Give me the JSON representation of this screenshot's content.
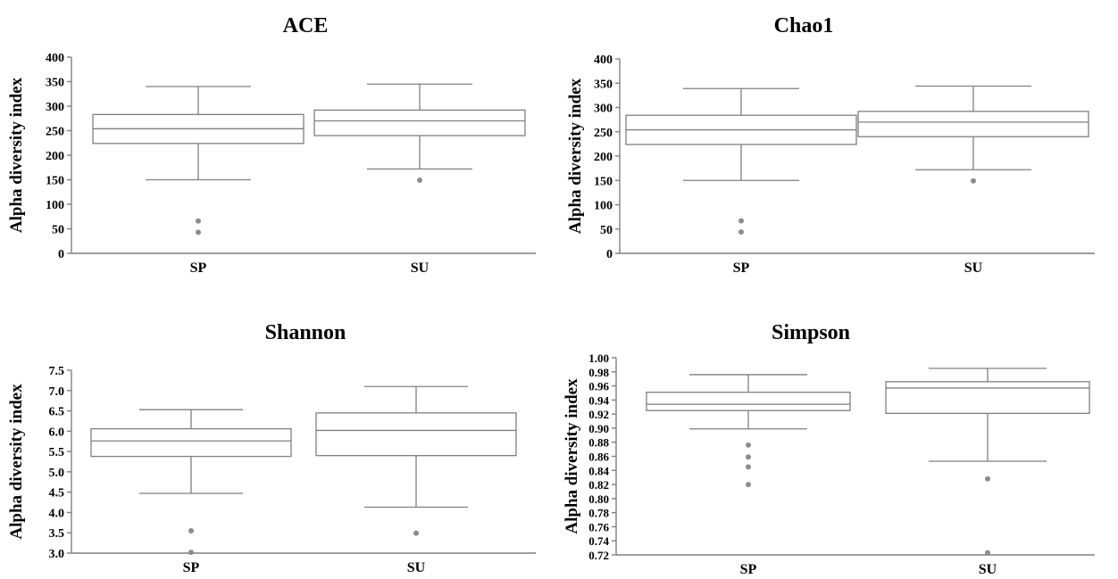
{
  "chart_data": [
    {
      "type": "box",
      "title": "ACE",
      "ylabel": "Alpha diversity index",
      "ylim": [
        0,
        400
      ],
      "yticks": [
        "0",
        "50",
        "100",
        "150",
        "200",
        "250",
        "300",
        "350",
        "400"
      ],
      "categories": [
        "SP",
        "SU"
      ],
      "boxes": [
        {
          "category": "SP",
          "whisker_low": 150,
          "q1": 224,
          "median": 254,
          "q3": 283,
          "whisker_high": 340,
          "outliers": [
            66,
            43
          ]
        },
        {
          "category": "SU",
          "whisker_low": 172,
          "q1": 240,
          "median": 270,
          "q3": 292,
          "whisker_high": 345,
          "outliers": [
            149
          ]
        }
      ]
    },
    {
      "type": "box",
      "title": "Chao1",
      "ylabel": "Alpha diversity index",
      "ylim": [
        0,
        400
      ],
      "yticks": [
        "0",
        "50",
        "100",
        "150",
        "200",
        "250",
        "300",
        "350",
        "400"
      ],
      "categories": [
        "SP",
        "SU"
      ],
      "boxes": [
        {
          "category": "SP",
          "whisker_low": 150,
          "q1": 224,
          "median": 254,
          "q3": 284,
          "whisker_high": 339,
          "outliers": [
            67,
            44
          ]
        },
        {
          "category": "SU",
          "whisker_low": 172,
          "q1": 240,
          "median": 270,
          "q3": 292,
          "whisker_high": 344,
          "outliers": [
            149
          ]
        }
      ]
    },
    {
      "type": "box",
      "title": "Shannon",
      "ylabel": "Alpha diversity index",
      "ylim": [
        3.0,
        7.5
      ],
      "yticks": [
        "3.0",
        "3.5",
        "4.0",
        "4.5",
        "5.0",
        "5.5",
        "6.0",
        "6.5",
        "7.0",
        "7.5"
      ],
      "categories": [
        "SP",
        "SU"
      ],
      "boxes": [
        {
          "category": "SP",
          "whisker_low": 4.47,
          "q1": 5.38,
          "median": 5.76,
          "q3": 6.06,
          "whisker_high": 6.53,
          "outliers": [
            3.55,
            3.02
          ]
        },
        {
          "category": "SU",
          "whisker_low": 4.13,
          "q1": 5.4,
          "median": 6.02,
          "q3": 6.45,
          "whisker_high": 7.1,
          "outliers": [
            3.49
          ]
        }
      ]
    },
    {
      "type": "box",
      "title": "Simpson",
      "ylabel": "Alpha diversity index",
      "ylim": [
        0.72,
        1.0
      ],
      "yticks": [
        "0.72",
        "0.74",
        "0.76",
        "0.78",
        "0.80",
        "0.82",
        "0.84",
        "0.86",
        "0.88",
        "0.90",
        "0.92",
        "0.94",
        "0.96",
        "0.98",
        "1.00"
      ],
      "categories": [
        "SP",
        "SU"
      ],
      "boxes": [
        {
          "category": "SP",
          "whisker_low": 0.899,
          "q1": 0.925,
          "median": 0.934,
          "q3": 0.951,
          "whisker_high": 0.976,
          "outliers": [
            0.876,
            0.859,
            0.845,
            0.82
          ]
        },
        {
          "category": "SU",
          "whisker_low": 0.853,
          "q1": 0.921,
          "median": 0.957,
          "q3": 0.966,
          "whisker_high": 0.985,
          "outliers": [
            0.828,
            0.723
          ]
        }
      ]
    }
  ]
}
